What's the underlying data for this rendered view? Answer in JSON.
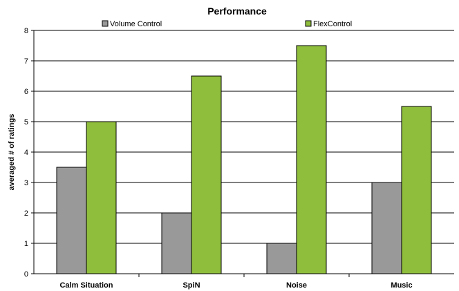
{
  "chart_data": {
    "type": "bar",
    "title": "Performance",
    "ylabel": "averaged # of ratings",
    "xlabel": "",
    "categories": [
      "Calm Situation",
      "SpiN",
      "Noise",
      "Music"
    ],
    "series": [
      {
        "name": "Volume Control",
        "color": "#999999",
        "values": [
          3.5,
          2,
          1,
          3
        ]
      },
      {
        "name": "FlexControl",
        "color": "#8fbe3c",
        "values": [
          5,
          6.5,
          7.5,
          5.5
        ]
      }
    ],
    "ylim": [
      0,
      8
    ],
    "yticks": [
      0,
      1,
      2,
      3,
      4,
      5,
      6,
      7,
      8
    ],
    "grid": true,
    "legend_position": "top"
  }
}
